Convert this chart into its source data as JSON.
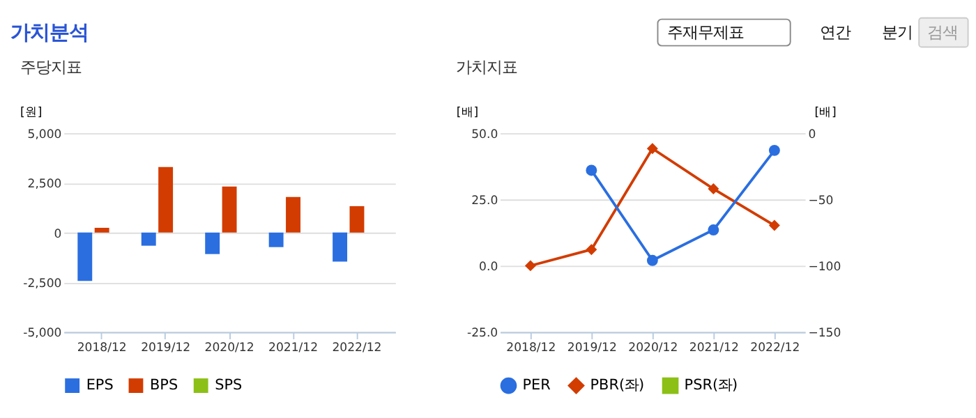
{
  "chart_data": [
    {
      "type": "bar",
      "title": "주당지표",
      "ylabel": "[원]",
      "categories": [
        "2018/12",
        "2019/12",
        "2020/12",
        "2021/12",
        "2022/12"
      ],
      "series": [
        {
          "name": "EPS",
          "color": "#2a6ee0",
          "values": [
            -2430,
            -660,
            -1080,
            -730,
            -1460
          ]
        },
        {
          "name": "BPS",
          "color": "#d23c00",
          "values": [
            240,
            3300,
            2320,
            1790,
            1330
          ]
        },
        {
          "name": "SPS",
          "color": "#8cc016",
          "values": [
            null,
            null,
            null,
            null,
            null
          ]
        }
      ],
      "ylim": [
        -5000,
        5000
      ],
      "yticks": [
        {
          "value": -5000,
          "label": "-5,000"
        },
        {
          "value": -2500,
          "label": "-2,500"
        },
        0,
        {
          "value": 2500,
          "label": "2,500"
        },
        {
          "value": 5000,
          "label": "5,000"
        }
      ],
      "grid": "y",
      "legend": "bottom",
      "annotations": [
        "가치분석",
        "주재무제표",
        "연간",
        "분기",
        "검색"
      ]
    },
    {
      "type": "line",
      "title": "가치지표",
      "ylabel": "[배]",
      "y2label": "[배]",
      "categories": [
        "2018/12",
        "2019/12",
        "2020/12",
        "2021/12",
        "2022/12"
      ],
      "series": [
        {
          "name": "PER",
          "color": "#2a6ee0",
          "axis": "y2",
          "marker": "circle",
          "values": [
            null,
            -28,
            -96,
            -73,
            -13
          ]
        },
        {
          "name": "PBR(좌)",
          "color": "#d23c00",
          "marker": "diamond",
          "values": [
            0.0,
            6.1,
            44.2,
            29.0,
            15.2
          ]
        },
        {
          "name": "PSR(좌)",
          "color": "#8cc016",
          "marker": "square",
          "values": [
            null,
            null,
            null,
            null,
            null
          ]
        }
      ],
      "ylim": [
        -25,
        50
      ],
      "yticks": [
        {
          "value": -25,
          "label": "-25.0"
        },
        {
          "value": 0,
          "label": "0.0"
        },
        {
          "value": 25,
          "label": "25.0"
        },
        {
          "value": 50,
          "label": "50.0"
        }
      ],
      "y2lim": [
        -150,
        0
      ],
      "y2ticks": [
        -150,
        -100,
        -50,
        0
      ],
      "grid": "y",
      "legend": "bottom"
    }
  ]
}
